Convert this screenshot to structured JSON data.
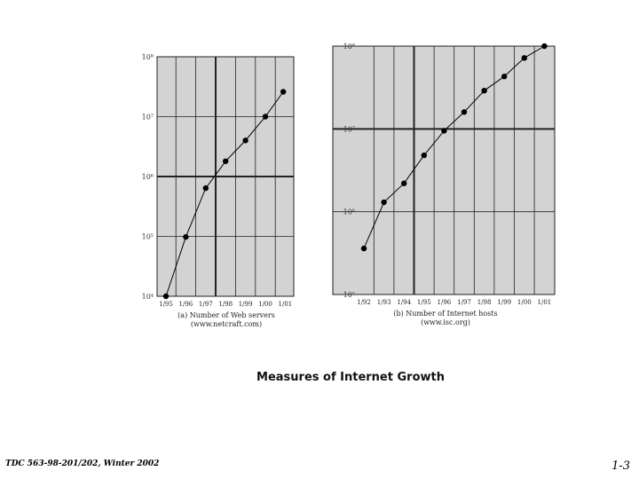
{
  "slide": {
    "title": "Measures of Internet Growth",
    "footer": "TDC 563-98-201/202, Winter 2002",
    "page_number": "1-3"
  },
  "chart_data": [
    {
      "type": "line",
      "log_scale_y": true,
      "ylim": [
        10000,
        100000000
      ],
      "y_ticks": [
        "10⁴",
        "10⁵",
        "10⁶",
        "10⁷",
        "10⁸"
      ],
      "categories": [
        "1/95",
        "1/96",
        "1/97",
        "1/98",
        "1/99",
        "1/00",
        "1/01"
      ],
      "caption": [
        "(a) Number of Web servers",
        "(www.netcraft.com)"
      ],
      "series": [
        {
          "points": [
            [
              0.0,
              10000
            ],
            [
              1.0,
              98000
            ],
            [
              2.0,
              640000
            ],
            [
              3.0,
              1800000
            ],
            [
              4.0,
              4000000
            ],
            [
              5.0,
              10000000
            ],
            [
              5.9,
              26000000
            ]
          ]
        }
      ],
      "grid": true,
      "background": "#d3d3d3",
      "thick_gridlines_y": [
        1000000
      ],
      "thick_gridlines_x": [
        2
      ]
    },
    {
      "type": "line",
      "log_scale_y": true,
      "ylim": [
        100000,
        100000000
      ],
      "y_ticks": [
        "10⁵",
        "10⁶",
        "10⁷",
        "10⁸"
      ],
      "categories": [
        "1/92",
        "1/93",
        "1/94",
        "1/95",
        "1/96",
        "1/97",
        "1/98",
        "1/99",
        "1/00",
        "1/01"
      ],
      "caption": [
        "(b) Number of Internet hosts",
        "(www.isc.org)"
      ],
      "series": [
        {
          "points": [
            [
              0.0,
              360000
            ],
            [
              1.0,
              1300000
            ],
            [
              2.0,
              2200000
            ],
            [
              3.0,
              4800000
            ],
            [
              4.0,
              9500000
            ],
            [
              5.0,
              16000000
            ],
            [
              6.0,
              29000000
            ],
            [
              7.0,
              43000000
            ],
            [
              8.0,
              72000000
            ],
            [
              9.0,
              110000000
            ]
          ]
        }
      ],
      "grid": true,
      "background": "#d3d3d3",
      "thick_gridlines_y": [
        10000000
      ],
      "thick_gridlines_x": [
        2
      ]
    }
  ]
}
